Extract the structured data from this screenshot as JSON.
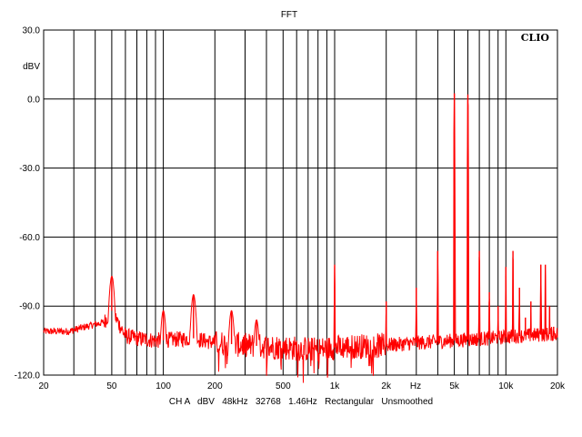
{
  "chart_data": {
    "type": "line",
    "title": "FFT",
    "brand": "CLIO",
    "ylabel": "dBV",
    "xlabel_unit": "Hz",
    "footer": "CH A   dBV   48kHz   32768   1.46Hz   Rectangular   Unsmoothed",
    "x_scale": "log",
    "xlim": [
      20,
      20000
    ],
    "ylim": [
      -120,
      30
    ],
    "grid": true,
    "x_ticks": [
      {
        "value": 20,
        "label": "20"
      },
      {
        "value": 50,
        "label": "50"
      },
      {
        "value": 100,
        "label": "100"
      },
      {
        "value": 200,
        "label": "200"
      },
      {
        "value": 500,
        "label": "500"
      },
      {
        "value": 1000,
        "label": "1k"
      },
      {
        "value": 2000,
        "label": "2k"
      },
      {
        "value": 5000,
        "label": "5k"
      },
      {
        "value": 10000,
        "label": "10k"
      },
      {
        "value": 20000,
        "label": "20k"
      }
    ],
    "y_ticks": [
      {
        "value": 30,
        "label": "30.0"
      },
      {
        "value": 0,
        "label": "0.0"
      },
      {
        "value": -30,
        "label": "-30.0"
      },
      {
        "value": -60,
        "label": "-60.0"
      },
      {
        "value": -90,
        "label": "-90.0"
      },
      {
        "value": -120,
        "label": "-120.0"
      }
    ],
    "series_color": "#ff0000",
    "floor_anchors": [
      [
        20,
        -101
      ],
      [
        28,
        -101
      ],
      [
        35,
        -99
      ],
      [
        45,
        -97
      ],
      [
        50,
        -92
      ],
      [
        60,
        -103
      ],
      [
        70,
        -104
      ],
      [
        90,
        -105
      ],
      [
        150,
        -104
      ],
      [
        200,
        -106
      ],
      [
        300,
        -107
      ],
      [
        500,
        -108
      ],
      [
        800,
        -109
      ],
      [
        1000,
        -108
      ],
      [
        2000,
        -107
      ],
      [
        3000,
        -106
      ],
      [
        5000,
        -105
      ],
      [
        8000,
        -104
      ],
      [
        12000,
        -103
      ],
      [
        20000,
        -102
      ]
    ],
    "peaks": [
      {
        "freq": 50,
        "level": -77
      },
      {
        "freq": 100,
        "level": -92
      },
      {
        "freq": 150,
        "level": -85
      },
      {
        "freq": 250,
        "level": -92
      },
      {
        "freq": 350,
        "level": -96
      },
      {
        "freq": 1000,
        "level": -72
      },
      {
        "freq": 2000,
        "level": -88
      },
      {
        "freq": 3000,
        "level": -82
      },
      {
        "freq": 4000,
        "level": -66
      },
      {
        "freq": 5000,
        "level": 2.5
      },
      {
        "freq": 6000,
        "level": 2.0
      },
      {
        "freq": 7000,
        "level": -66
      },
      {
        "freq": 8000,
        "level": -84
      },
      {
        "freq": 9000,
        "level": -90
      },
      {
        "freq": 10000,
        "level": -73
      },
      {
        "freq": 11000,
        "level": -66
      },
      {
        "freq": 12000,
        "level": -82
      },
      {
        "freq": 13000,
        "level": -95
      },
      {
        "freq": 14000,
        "level": -88
      },
      {
        "freq": 16000,
        "level": -72
      },
      {
        "freq": 17000,
        "level": -72
      },
      {
        "freq": 18000,
        "level": -90
      },
      {
        "freq": 19000,
        "level": -99
      }
    ]
  }
}
